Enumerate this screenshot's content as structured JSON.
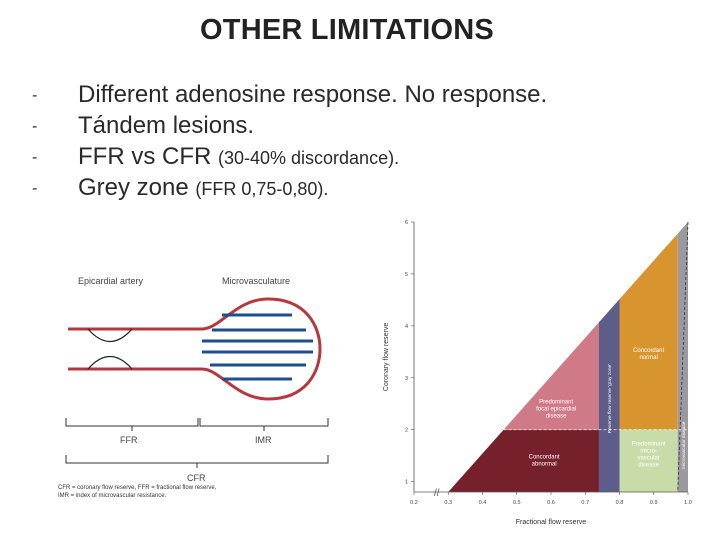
{
  "title": "OTHER LIMITATIONS",
  "bullets": [
    {
      "dash": "-",
      "main": "Different adenosine response. No response.",
      "note": ""
    },
    {
      "dash": "-",
      "main": "Tándem lesions.",
      "note": ""
    },
    {
      "dash": "-",
      "main": "FFR vs CFR",
      "note": "(30-40% discordance)."
    },
    {
      "dash": "-",
      "main": "Grey zone",
      "note": "(FFR 0,75-0,80)."
    }
  ],
  "vessel_diagram": {
    "label_epicardial": "Epicardial artery",
    "label_micro": "Microvasculature",
    "brace_ffr": "FFR",
    "brace_imr": "IMR",
    "brace_cfr": "CFR",
    "footnote_1": "CFR = coronary flow reserve, FFR = fractional flow reserve,",
    "footnote_2": "IMR = index of microvascular resistance.",
    "colors": {
      "vessel": "#b5383c",
      "lines": "#1f4e8c"
    }
  },
  "chart_data": {
    "type": "area",
    "xlabel": "Fractional flow reserve",
    "ylabel": "Coronary flow reserve",
    "x_ticks": [
      "0.2",
      "0.3",
      "0.4",
      "0.5",
      "0.6",
      "0.7",
      "0.8",
      "0.9",
      "1.0"
    ],
    "y_ticks": [
      "1",
      "2",
      "3",
      "4",
      "5",
      "6"
    ],
    "xlim": [
      0.2,
      1.0
    ],
    "ylim": [
      0.8,
      6.0
    ],
    "regions": [
      {
        "name": "Concordant abnormal",
        "label_lines": [
          "Concordant",
          "abnormal"
        ],
        "color": "#76202b"
      },
      {
        "name": "Predominant focal epicardial disease",
        "label_lines": [
          "Predominant",
          "focal epicardial",
          "disease"
        ],
        "color": "#cf7a86"
      },
      {
        "name": "Concordant normal",
        "label_lines": [
          "Concordant",
          "normal"
        ],
        "color": "#d8952f"
      },
      {
        "name": "Predominant microvascular disease",
        "label_lines": [
          "Predominant",
          "micro-",
          "vascular",
          "disease"
        ],
        "color": "#c8dcaa"
      },
      {
        "name": "Reserve flow reserve gray zone",
        "label_lines": [
          "Reserve flow reserve 'gray zone'"
        ],
        "color": "#5c5d88"
      },
      {
        "name": "Microvascular disease",
        "label_lines": [
          "microvascular disease"
        ],
        "color": "#9a9a9e"
      }
    ],
    "thresholds": {
      "ffr": 0.8,
      "cfr": 2.0
    }
  }
}
